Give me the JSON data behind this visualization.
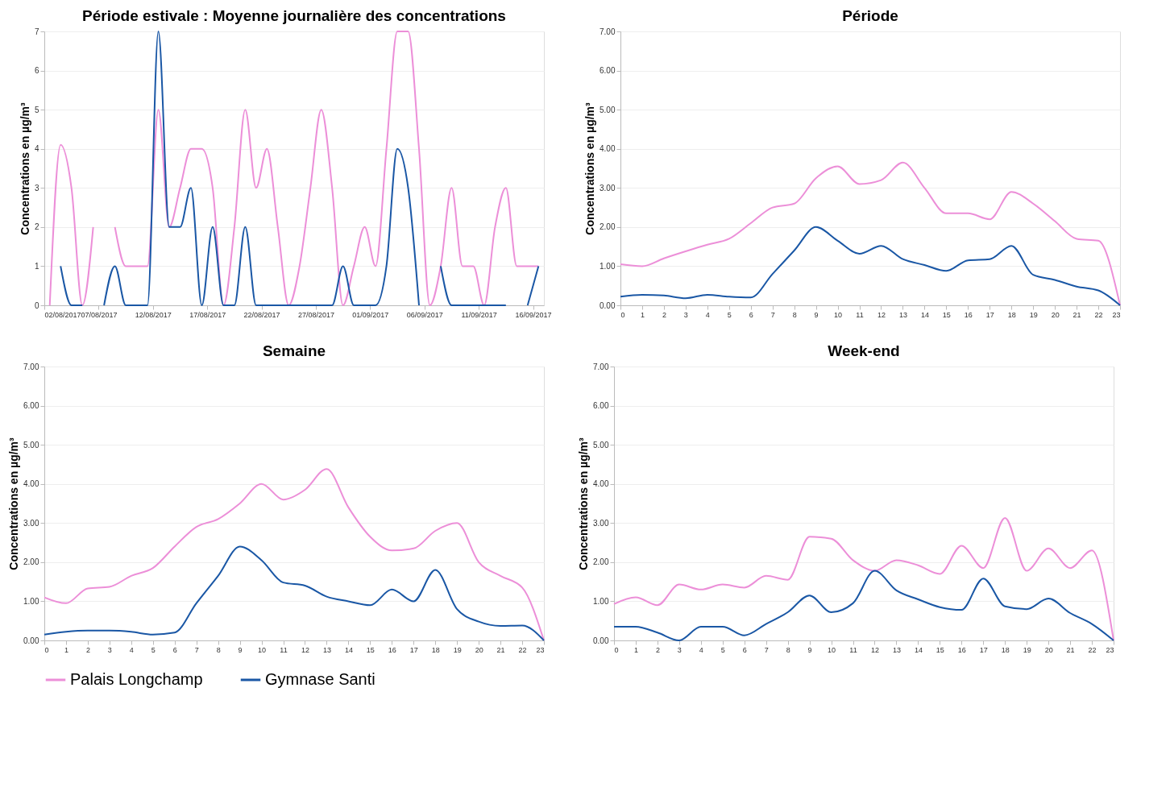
{
  "chart_data": [
    {
      "type": "line",
      "title": "Période estivale : Moyenne journalière des concentrations",
      "ylabel": "Concentrations en µg/m³",
      "x": [
        "2017-08-02T12:00",
        "2017-08-03T12:00",
        "2017-08-04T12:00",
        "2017-08-05T12:00",
        "2017-08-06T12:00",
        "2017-08-07T12:00",
        "2017-08-08T12:00",
        "2017-08-09T12:00",
        "2017-08-10T12:00",
        "2017-08-11T12:00",
        "2017-08-12T12:00",
        "2017-08-13T12:00",
        "2017-08-14T12:00",
        "2017-08-15T12:00",
        "2017-08-16T12:00",
        "2017-08-17T12:00",
        "2017-08-18T12:00",
        "2017-08-19T12:00",
        "2017-08-20T12:00",
        "2017-08-21T12:00",
        "2017-08-22T12:00",
        "2017-08-23T12:00",
        "2017-08-24T12:00",
        "2017-08-25T12:00",
        "2017-08-26T12:00",
        "2017-08-27T12:00",
        "2017-08-28T12:00",
        "2017-08-29T12:00",
        "2017-08-30T12:00",
        "2017-08-31T12:00",
        "2017-09-01T12:00",
        "2017-09-02T12:00",
        "2017-09-03T12:00",
        "2017-09-04T12:00",
        "2017-09-05T12:00",
        "2017-09-06T12:00",
        "2017-09-07T12:00",
        "2017-09-08T12:00",
        "2017-09-09T12:00",
        "2017-09-10T12:00",
        "2017-09-11T12:00",
        "2017-09-12T12:00",
        "2017-09-13T12:00",
        "2017-09-14T12:00",
        "2017-09-15T12:00",
        "2017-09-16T12:00"
      ],
      "series": [
        {
          "name": "Palais Longchamp",
          "color": "#ec8fd8",
          "values": [
            0,
            4.1,
            3,
            0,
            2,
            null,
            2,
            1,
            1,
            1,
            5,
            2,
            3,
            4,
            4,
            3,
            0,
            2,
            5,
            3,
            4,
            2,
            0,
            1,
            3,
            5,
            3,
            0,
            1,
            2,
            1,
            4,
            7,
            7,
            4,
            0,
            1,
            3,
            1,
            1,
            0,
            2,
            3,
            1,
            1,
            1
          ]
        },
        {
          "name": "Gymnase Santi",
          "color": "#1a57a5",
          "values": [
            null,
            1,
            0,
            0,
            null,
            0,
            1,
            0,
            0,
            0,
            7,
            2,
            2,
            3,
            0,
            2,
            0,
            0,
            2,
            0,
            0,
            0,
            0,
            0,
            0,
            0,
            0,
            1,
            0,
            0,
            0,
            1,
            4,
            3,
            0,
            null,
            1,
            0,
            0,
            0,
            0,
            0,
            0,
            null,
            0,
            1
          ]
        }
      ],
      "xlim": [
        "2017-08-02",
        "2017-09-17"
      ],
      "xticks": [
        {
          "value": "2017-08-02",
          "label": "02/08/2017"
        },
        {
          "value": "2017-08-07",
          "label": "07/08/2017"
        },
        {
          "value": "2017-08-12",
          "label": "12/08/2017"
        },
        {
          "value": "2017-08-17",
          "label": "17/08/2017"
        },
        {
          "value": "2017-08-22",
          "label": "22/08/2017"
        },
        {
          "value": "2017-08-27",
          "label": "27/08/2017"
        },
        {
          "value": "2017-09-01",
          "label": "01/09/2017"
        },
        {
          "value": "2017-09-06",
          "label": "06/09/2017"
        },
        {
          "value": "2017-09-11",
          "label": "11/09/2017"
        },
        {
          "value": "2017-09-16",
          "label": "16/09/2017"
        }
      ],
      "ylim": [
        0,
        7
      ],
      "yticks": [
        0,
        1,
        2,
        3,
        4,
        5,
        6,
        7
      ],
      "grid": "y",
      "legend": "bottom",
      "marker": "none",
      "line_style": "solid"
    },
    {
      "type": "line",
      "title": "Période",
      "ylabel": "Concentrations en µg/m³",
      "x": [
        0,
        1,
        2,
        3,
        4,
        5,
        6,
        7,
        8,
        9,
        10,
        11,
        12,
        13,
        14,
        15,
        16,
        17,
        18,
        19,
        20,
        21,
        22,
        23
      ],
      "series": [
        {
          "name": "Palais Longchamp",
          "color": "#ec8fd8",
          "values": [
            1.05,
            1.0,
            1.2,
            1.38,
            1.55,
            1.7,
            2.1,
            2.5,
            2.6,
            3.25,
            3.55,
            3.1,
            3.2,
            3.65,
            3.0,
            2.35,
            2.35,
            2.2,
            2.9,
            2.6,
            2.15,
            1.7,
            1.65,
            0
          ]
        },
        {
          "name": "Gymnase Santi",
          "color": "#1a57a5",
          "values": [
            0.22,
            0.27,
            0.25,
            0.18,
            0.27,
            0.22,
            0.2,
            0.8,
            1.4,
            2.0,
            1.65,
            1.32,
            1.52,
            1.18,
            1.03,
            0.88,
            1.15,
            1.18,
            1.52,
            0.78,
            0.65,
            0.48,
            0.38,
            0
          ]
        }
      ],
      "xlim": [
        0,
        23
      ],
      "xticks": [
        0,
        1,
        2,
        3,
        4,
        5,
        6,
        7,
        8,
        9,
        10,
        11,
        12,
        13,
        14,
        15,
        16,
        17,
        18,
        19,
        20,
        21,
        22,
        23
      ],
      "ylim": [
        0,
        7
      ],
      "yticks": [
        {
          "value": 0,
          "label": "0.00"
        },
        {
          "value": 1,
          "label": "1.00"
        },
        {
          "value": 2,
          "label": "2.00"
        },
        {
          "value": 3,
          "label": "3.00"
        },
        {
          "value": 4,
          "label": "4.00"
        },
        {
          "value": 5,
          "label": "5.00"
        },
        {
          "value": 6,
          "label": "6.00"
        },
        {
          "value": 7,
          "label": "7.00"
        }
      ],
      "grid": "y",
      "legend": "bottom",
      "marker": "none",
      "line_style": "solid"
    },
    {
      "type": "line",
      "title": "Semaine",
      "ylabel": "Concentrations en µg/m³",
      "x": [
        0,
        1,
        2,
        3,
        4,
        5,
        6,
        7,
        8,
        9,
        10,
        11,
        12,
        13,
        14,
        15,
        16,
        17,
        18,
        19,
        20,
        21,
        22,
        23
      ],
      "series": [
        {
          "name": "Palais Longchamp",
          "color": "#ec8fd8",
          "values": [
            1.1,
            0.95,
            1.33,
            1.37,
            1.65,
            1.85,
            2.4,
            2.9,
            3.1,
            3.5,
            4.0,
            3.6,
            3.85,
            4.38,
            3.4,
            2.65,
            2.3,
            2.35,
            2.8,
            3.0,
            2.0,
            1.65,
            1.35,
            0
          ]
        },
        {
          "name": "Gymnase Santi",
          "color": "#1a57a5",
          "values": [
            0.15,
            0.22,
            0.25,
            0.25,
            0.22,
            0.15,
            0.2,
            0.95,
            1.65,
            2.4,
            2.05,
            1.48,
            1.4,
            1.12,
            1.0,
            0.9,
            1.3,
            1.0,
            1.8,
            0.8,
            0.48,
            0.37,
            0.38,
            0
          ]
        }
      ],
      "xlim": [
        0,
        23
      ],
      "xticks": [
        0,
        1,
        2,
        3,
        4,
        5,
        6,
        7,
        8,
        9,
        10,
        11,
        12,
        13,
        14,
        15,
        16,
        17,
        18,
        19,
        20,
        21,
        22,
        23
      ],
      "ylim": [
        0,
        7
      ],
      "yticks": [
        {
          "value": 0,
          "label": "0.00"
        },
        {
          "value": 1,
          "label": "1.00"
        },
        {
          "value": 2,
          "label": "2.00"
        },
        {
          "value": 3,
          "label": "3.00"
        },
        {
          "value": 4,
          "label": "4.00"
        },
        {
          "value": 5,
          "label": "5.00"
        },
        {
          "value": 6,
          "label": "6.00"
        },
        {
          "value": 7,
          "label": "7.00"
        }
      ],
      "grid": "y",
      "legend": "bottom",
      "marker": "none",
      "line_style": "solid"
    },
    {
      "type": "line",
      "title": "Week-end",
      "ylabel": "Concentrations en µg/m³",
      "x": [
        0,
        1,
        2,
        3,
        4,
        5,
        6,
        7,
        8,
        9,
        10,
        11,
        12,
        13,
        14,
        15,
        16,
        17,
        18,
        19,
        20,
        21,
        22,
        23
      ],
      "series": [
        {
          "name": "Palais Longchamp",
          "color": "#ec8fd8",
          "values": [
            0.93,
            1.1,
            0.9,
            1.43,
            1.3,
            1.43,
            1.35,
            1.65,
            1.55,
            2.65,
            2.6,
            2.05,
            1.78,
            2.05,
            1.92,
            1.7,
            2.42,
            1.85,
            3.13,
            1.78,
            2.35,
            1.85,
            2.3,
            0
          ]
        },
        {
          "name": "Gymnase Santi",
          "color": "#1a57a5",
          "values": [
            0.35,
            0.35,
            0.2,
            0,
            0.35,
            0.35,
            0.13,
            0.42,
            0.72,
            1.15,
            0.72,
            0.95,
            1.78,
            1.28,
            1.05,
            0.85,
            0.78,
            1.58,
            0.87,
            0.8,
            1.07,
            0.7,
            0.42,
            0
          ]
        }
      ],
      "xlim": [
        0,
        23
      ],
      "xticks": [
        0,
        1,
        2,
        3,
        4,
        5,
        6,
        7,
        8,
        9,
        10,
        11,
        12,
        13,
        14,
        15,
        16,
        17,
        18,
        19,
        20,
        21,
        22,
        23
      ],
      "ylim": [
        0,
        7
      ],
      "yticks": [
        {
          "value": 0,
          "label": "0.00"
        },
        {
          "value": 1,
          "label": "1.00"
        },
        {
          "value": 2,
          "label": "2.00"
        },
        {
          "value": 3,
          "label": "3.00"
        },
        {
          "value": 4,
          "label": "4.00"
        },
        {
          "value": 5,
          "label": "5.00"
        },
        {
          "value": 6,
          "label": "6.00"
        },
        {
          "value": 7,
          "label": "7.00"
        }
      ],
      "grid": "y",
      "legend": "bottom",
      "marker": "none",
      "line_style": "solid"
    }
  ]
}
